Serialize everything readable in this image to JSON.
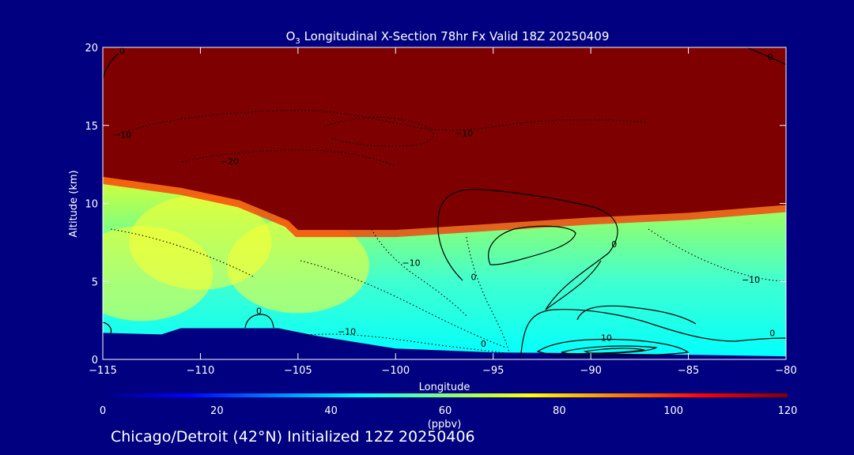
{
  "chart_data": {
    "type": "heatmap",
    "title_prefix": "O",
    "title_sub": "3",
    "title_rest": " Longitudinal X-Section 78hr  Fx Valid 18Z 20250409",
    "xlabel": "Longitude",
    "ylabel": "Altitude (km)",
    "xlim": [
      -115,
      -80
    ],
    "ylim": [
      0,
      20
    ],
    "x_ticks": [
      -115,
      -110,
      -105,
      -100,
      -95,
      -90,
      -85,
      -80
    ],
    "x_tick_labels": [
      "−115",
      "−110",
      "−105",
      "−100",
      "−95",
      "−90",
      "−85",
      "−80"
    ],
    "y_ticks": [
      0,
      5,
      10,
      15,
      20
    ],
    "y_tick_labels": [
      "0",
      "5",
      "10",
      "15",
      "20"
    ],
    "colorbar": {
      "label": "(ppbv)",
      "range": [
        0,
        120
      ],
      "ticks": [
        0,
        20,
        40,
        60,
        80,
        100,
        120
      ],
      "tick_labels": [
        "0",
        "20",
        "40",
        "60",
        "80",
        "100",
        "120"
      ],
      "colors": [
        "#00007f",
        "#0000ff",
        "#007fff",
        "#00ffff",
        "#7fff7f",
        "#ffff00",
        "#ff7f00",
        "#ff0000",
        "#7f0000"
      ]
    },
    "fields": {
      "tropopause_top_km": [
        [
          -115,
          11.7
        ],
        [
          -111,
          11.0
        ],
        [
          -108,
          10.2
        ],
        [
          -105.5,
          8.9
        ],
        [
          -105,
          8.3
        ],
        [
          -100,
          8.3
        ],
        [
          -95,
          8.7
        ],
        [
          -90,
          9.1
        ],
        [
          -85,
          9.4
        ],
        [
          -80,
          9.9
        ]
      ],
      "terrain_km": [
        [
          -115,
          1.7
        ],
        [
          -112,
          1.6
        ],
        [
          -111,
          2.0
        ],
        [
          -106,
          2.0
        ],
        [
          -104,
          1.5
        ],
        [
          -100,
          0.7
        ],
        [
          -95,
          0.45
        ],
        [
          -90,
          0.4
        ],
        [
          -85,
          0.3
        ],
        [
          -80,
          0.2
        ]
      ],
      "high_o3_cores": [
        {
          "lon": -110,
          "alt": 7.5,
          "ppbv": 78
        },
        {
          "lon": -105,
          "alt": 6.0,
          "ppbv": 80
        },
        {
          "lon": -113,
          "alt": 5.5,
          "ppbv": 74
        }
      ]
    },
    "contour_labels": [
      {
        "text": "0",
        "lon": -114,
        "alt": 19.6
      },
      {
        "text": "0",
        "lon": -80.8,
        "alt": 19.2
      },
      {
        "text": "−10",
        "lon": -114,
        "alt": 14.2
      },
      {
        "text": "−20",
        "lon": -108.5,
        "alt": 12.5
      },
      {
        "text": "−10",
        "lon": -96.5,
        "alt": 14.3
      },
      {
        "text": "−10",
        "lon": -99.2,
        "alt": 6.0
      },
      {
        "text": "0",
        "lon": -96.0,
        "alt": 5.1
      },
      {
        "text": "0",
        "lon": -88.8,
        "alt": 7.2
      },
      {
        "text": "0",
        "lon": -107.0,
        "alt": 2.9
      },
      {
        "text": "−10",
        "lon": -102.5,
        "alt": 1.6
      },
      {
        "text": "10",
        "lon": -89.2,
        "alt": 1.2
      },
      {
        "text": "0",
        "lon": -80.7,
        "alt": 1.5
      },
      {
        "text": "−10",
        "lon": -81.8,
        "alt": 4.9
      },
      {
        "text": "0",
        "lon": -95.5,
        "alt": 0.8
      }
    ]
  },
  "footer": "Chicago/Detroit (42°N) Initialized 12Z 20250406"
}
